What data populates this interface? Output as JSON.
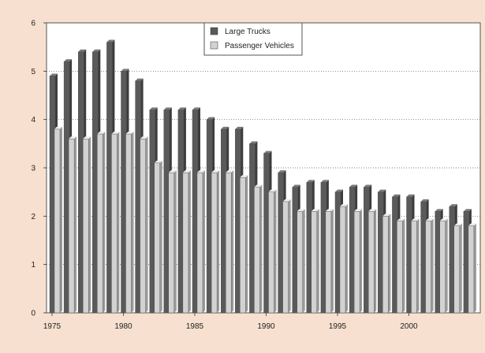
{
  "colors": {
    "background": "#f7e0cf",
    "plot_background": "#ffffff",
    "large_trucks": "#5a5a5a",
    "large_trucks_top": "#7a7a7a",
    "large_trucks_side": "#3c3c3c",
    "passenger_vehicles": "#d2d2d2",
    "passenger_vehicles_top": "#ececec",
    "passenger_vehicles_side": "#9a9a9a",
    "gridline": "#555555"
  },
  "chart_data": {
    "type": "bar",
    "title": "",
    "xlabel": "",
    "ylabel": "",
    "ylim": [
      0,
      6
    ],
    "yticks": [
      "0",
      "1",
      "2",
      "3",
      "4",
      "5",
      "6"
    ],
    "grid": "horizontal dotted",
    "legend_position": "top-center",
    "categories": [
      1975,
      1976,
      1977,
      1978,
      1979,
      1980,
      1981,
      1982,
      1983,
      1984,
      1985,
      1986,
      1987,
      1988,
      1989,
      1990,
      1991,
      1992,
      1993,
      1994,
      1995,
      1996,
      1997,
      1998,
      1999,
      2000,
      2001,
      2002,
      2003,
      2004
    ],
    "xtick_labels": [
      "1975",
      "1980",
      "1985",
      "1990",
      "1995",
      "2000"
    ],
    "xtick_years": [
      1975,
      1980,
      1985,
      1990,
      1995,
      2000
    ],
    "series": [
      {
        "name": "Large Trucks",
        "values": [
          4.9,
          5.2,
          5.4,
          5.4,
          5.6,
          5.0,
          4.8,
          4.2,
          4.2,
          4.2,
          4.2,
          4.0,
          3.8,
          3.8,
          3.5,
          3.3,
          2.9,
          2.6,
          2.7,
          2.7,
          2.5,
          2.6,
          2.6,
          2.5,
          2.4,
          2.4,
          2.3,
          2.1,
          2.2,
          2.1
        ]
      },
      {
        "name": "Passenger Vehicles",
        "values": [
          3.8,
          3.6,
          3.6,
          3.7,
          3.7,
          3.7,
          3.6,
          3.1,
          2.9,
          2.9,
          2.9,
          2.9,
          2.9,
          2.8,
          2.6,
          2.5,
          2.3,
          2.1,
          2.1,
          2.1,
          2.2,
          2.1,
          2.1,
          2.0,
          1.9,
          1.9,
          1.9,
          1.9,
          1.8,
          1.8
        ]
      }
    ]
  }
}
